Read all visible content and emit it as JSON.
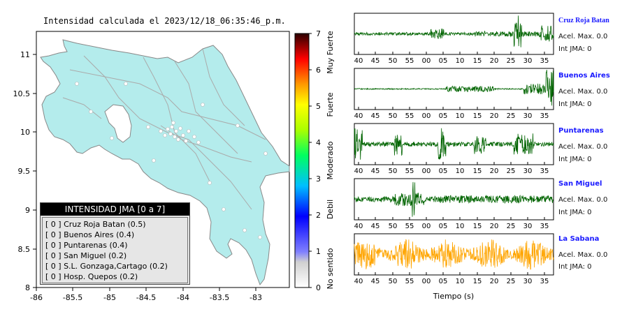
{
  "map": {
    "title": "Intensidad calculada el 2023/12/18_06:35:46_p.m.",
    "lon_ticks": [
      "-86",
      "-85.5",
      "-85",
      "-84.5",
      "-84",
      "-83.5",
      "-83"
    ],
    "lat_ticks": [
      "11",
      "10.5",
      "10",
      "9.5",
      "9",
      "8.5",
      "8"
    ],
    "colors": {
      "land": "#b4ecec",
      "water": "#ffffff",
      "border": "#888888"
    }
  },
  "colorbar": {
    "ticks": [
      "0",
      "1",
      "2",
      "3",
      "4",
      "5",
      "6",
      "7"
    ],
    "categories": [
      "No sentido",
      "Debil",
      "Moderado",
      "Fuerte",
      "Muy Fuerte"
    ]
  },
  "legend": {
    "header": "INTENSIDAD JMA [0 a 7]",
    "rows": [
      "[ 0 ] Cruz Roja Batan (0.5)",
      "[ 0 ] Buenos Aires (0.4)",
      "[ 0 ] Puntarenas (0.4)",
      "[ 0 ] San Miguel (0.2)",
      "[ 0 ] S.L. Gonzaga,Cartago (0.2)",
      "[ 0 ] Hosp. Quepos (0.2)"
    ]
  },
  "seismograms": {
    "x_ticks": [
      "40",
      "45",
      "50",
      "55",
      "00",
      "05",
      "10",
      "15",
      "20",
      "25",
      "30",
      "35"
    ],
    "xlabel": "Tiempo (s)",
    "stations": [
      {
        "name": "Cruz Roja Batan",
        "acel": "Acel. Max. 0.0",
        "jma": "Int JMA: 0",
        "color": "#006400"
      },
      {
        "name": "Buenos Aires",
        "acel": "Acel. Max. 0.0",
        "jma": "Int JMA: 0",
        "color": "#006400"
      },
      {
        "name": "Puntarenas",
        "acel": "Acel. Max. 0.0",
        "jma": "Int JMA: 0",
        "color": "#006400"
      },
      {
        "name": "San Miguel",
        "acel": "Acel. Max. 0.0",
        "jma": "Int JMA: 0",
        "color": "#006400"
      },
      {
        "name": "La Sabana",
        "acel": "Acel. Max. 0.0",
        "jma": "Int JMA: 0",
        "color": "#ffa500"
      }
    ]
  },
  "chart_data": {
    "type": "heatmap",
    "title": "Intensidad calculada el 2023/12/18_06:35:46_p.m.",
    "xlabel": "",
    "ylabel": "",
    "xlim": [
      -86,
      -82.5
    ],
    "ylim": [
      8,
      11.3
    ],
    "colorbar_range": [
      0,
      7
    ],
    "stations": [
      {
        "name": "Cruz Roja Batan",
        "jma": 0,
        "value": 0.5
      },
      {
        "name": "Buenos Aires",
        "jma": 0,
        "value": 0.4
      },
      {
        "name": "Puntarenas",
        "jma": 0,
        "value": 0.4
      },
      {
        "name": "San Miguel",
        "jma": 0,
        "value": 0.2
      },
      {
        "name": "S.L. Gonzaga,Cartago",
        "jma": 0,
        "value": 0.2
      },
      {
        "name": "Hosp. Quepos",
        "jma": 0,
        "value": 0.2
      }
    ]
  }
}
